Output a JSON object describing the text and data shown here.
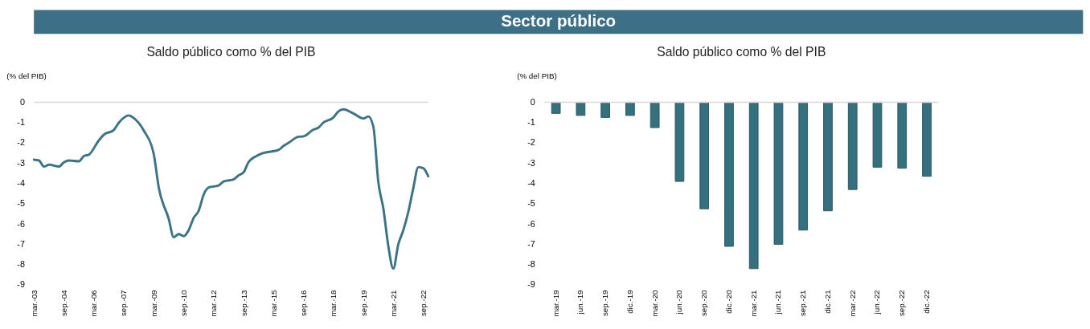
{
  "chart_data": [
    {
      "type": "other",
      "title": "Sector público"
    },
    {
      "type": "line",
      "title": "Saldo público como % del PIB",
      "ylabel": "(% del PIB)",
      "x": [
        "2003-03",
        "2003-06",
        "2003-09",
        "2003-12",
        "2004-06",
        "2004-09",
        "2004-12",
        "2005-06",
        "2005-09",
        "2005-12",
        "2006-06",
        "2006-09",
        "2007-03",
        "2007-06",
        "2007-12",
        "2008-03",
        "2008-09",
        "2009-03",
        "2009-06",
        "2009-12",
        "2010-03",
        "2010-06",
        "2010-09",
        "2010-12",
        "2011-03",
        "2011-06",
        "2011-09",
        "2011-12",
        "2012-06",
        "2012-09",
        "2012-12",
        "2013-03",
        "2013-06",
        "2013-09",
        "2013-12",
        "2014-06",
        "2014-09",
        "2015-06",
        "2015-09",
        "2015-12",
        "2016-06",
        "2016-09",
        "2017-03",
        "2017-06",
        "2017-09",
        "2018-03",
        "2018-06",
        "2018-09",
        "2019-03",
        "2019-09",
        "2019-12",
        "2020-03",
        "2020-06",
        "2020-09",
        "2020-12",
        "2021-03",
        "2021-06",
        "2021-09",
        "2021-12",
        "2022-03",
        "2022-06",
        "2022-09",
        "2022-12"
      ],
      "series": [
        {
          "color": "#3b7486",
          "values": [
            -2.83,
            -2.87,
            -3.17,
            -3.08,
            -3.17,
            -2.96,
            -2.87,
            -2.91,
            -2.65,
            -2.58,
            -1.88,
            -1.6,
            -1.37,
            -1.01,
            -0.65,
            -0.78,
            -1.4,
            -2.55,
            -4.2,
            -5.75,
            -6.65,
            -6.5,
            -6.6,
            -6.3,
            -5.7,
            -5.35,
            -4.55,
            -4.2,
            -4.1,
            -3.9,
            -3.85,
            -3.8,
            -3.6,
            -3.45,
            -2.95,
            -2.6,
            -2.5,
            -2.35,
            -2.15,
            -2.0,
            -1.7,
            -1.68,
            -1.35,
            -1.25,
            -1.0,
            -0.75,
            -0.45,
            -0.35,
            -0.55,
            -0.8,
            -0.7,
            -1.2,
            -3.95,
            -5.25,
            -7.1,
            -8.2,
            -7.0,
            -6.3,
            -5.4,
            -4.25,
            -3.2,
            -3.25,
            -3.65
          ]
        }
      ],
      "xlim": [
        "2003-03",
        "2022-12"
      ],
      "xticks": [
        {
          "value": "2003-03",
          "label": "mar.-03"
        },
        {
          "value": "2004-09",
          "label": "sep.-04"
        },
        {
          "value": "2006-03",
          "label": "mar.-06"
        },
        {
          "value": "2007-09",
          "label": "sep.-07"
        },
        {
          "value": "2009-03",
          "label": "mar.-09"
        },
        {
          "value": "2010-09",
          "label": "sep.-10"
        },
        {
          "value": "2012-03",
          "label": "mar.-12"
        },
        {
          "value": "2013-09",
          "label": "sep.-13"
        },
        {
          "value": "2015-03",
          "label": "mar.-15"
        },
        {
          "value": "2016-09",
          "label": "sep.-16"
        },
        {
          "value": "2018-03",
          "label": "mar.-18"
        },
        {
          "value": "2019-09",
          "label": "sep.-19"
        },
        {
          "value": "2021-03",
          "label": "mar.-21"
        },
        {
          "value": "2022-09",
          "label": "sep.-22"
        }
      ],
      "ylim": [
        -9,
        0
      ],
      "yticks": [
        -9,
        -8,
        -7,
        -6,
        -5,
        -4,
        -3,
        -2,
        -1,
        0
      ],
      "ref_lines": [
        {
          "axis": "y",
          "value": 0,
          "color": "#d9d9d9"
        }
      ]
    },
    {
      "type": "bar",
      "title": "Saldo público como % del PIB",
      "ylabel": "(% del PIB)",
      "categories": [
        "mar.-19",
        "jun.-19",
        "sep.-19",
        "dic.-19",
        "mar.-20",
        "jun.-20",
        "sep.-20",
        "dic.-20",
        "mar.-21",
        "jun.-21",
        "sep.-21",
        "dic.-21",
        "mar.-22",
        "jun.-22",
        "sep.-22",
        "dic.-22"
      ],
      "series": [
        {
          "color": "#35707f",
          "values": [
            -0.55,
            -0.65,
            -0.75,
            -0.65,
            -1.25,
            -3.9,
            -5.25,
            -7.1,
            -8.2,
            -7.0,
            -6.3,
            -5.35,
            -4.3,
            -3.2,
            -3.25,
            -3.65
          ]
        }
      ],
      "ylim": [
        -9,
        0
      ],
      "yticks": [
        -9,
        -8,
        -7,
        -6,
        -5,
        -4,
        -3,
        -2,
        -1,
        0
      ],
      "ref_lines": [
        {
          "axis": "y",
          "value": 0,
          "color": "#d9d9d9"
        }
      ]
    }
  ]
}
